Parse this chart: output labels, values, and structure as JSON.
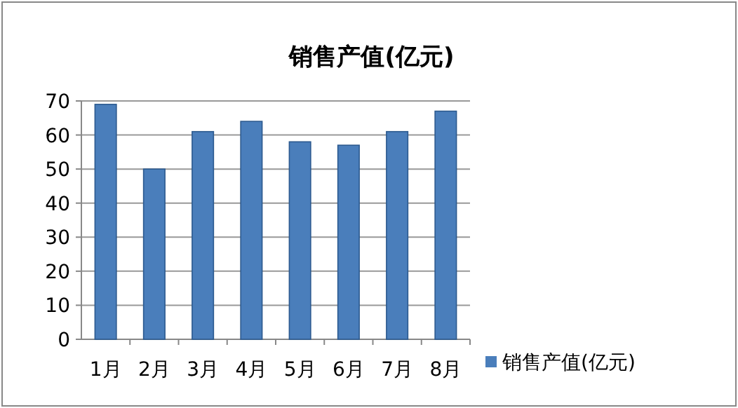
{
  "chart_data": {
    "type": "bar",
    "title": "销售产值(亿元)",
    "categories": [
      "1月",
      "2月",
      "3月",
      "4月",
      "5月",
      "6月",
      "7月",
      "8月"
    ],
    "series": [
      {
        "name": "销售产值(亿元)",
        "color": "#4a7ebb",
        "values": [
          69,
          50,
          61,
          64,
          58,
          57,
          61,
          67
        ]
      }
    ],
    "ylim": [
      0,
      70
    ],
    "yticks": [
      0,
      10,
      20,
      30,
      40,
      50,
      60,
      70
    ],
    "grid": "y",
    "legend": "bottom right"
  }
}
